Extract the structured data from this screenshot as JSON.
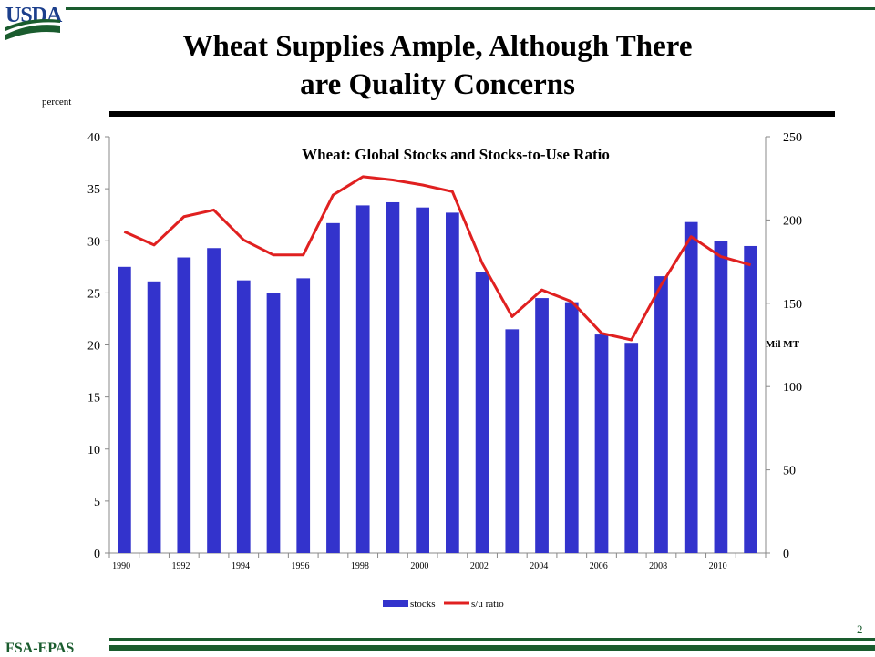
{
  "header": {
    "logo_text": "USDA",
    "title_line1": "Wheat Supplies Ample, Although There",
    "title_line2": "are Quality Concerns"
  },
  "footer": {
    "org": "FSA-EPAS",
    "page_number": "2"
  },
  "colors": {
    "bar": "#3333cc",
    "line": "#e02020",
    "brand_green": "#1a5c2e"
  },
  "chart_data": {
    "type": "bar",
    "title": "Wheat: Global Stocks and Stocks-to-Use Ratio",
    "left_axis_label": "percent",
    "right_axis_label": "Mil MT",
    "x": [
      1990,
      1991,
      1992,
      1993,
      1994,
      1995,
      1996,
      1997,
      1998,
      1999,
      2000,
      2001,
      2002,
      2003,
      2004,
      2005,
      2006,
      2007,
      2008,
      2009,
      2010,
      2011
    ],
    "x_tick_labels": [
      "1990",
      "1992",
      "1994",
      "1996",
      "1998",
      "2000",
      "2002",
      "2004",
      "2006",
      "2008",
      "2010"
    ],
    "left_ylim": [
      0,
      40
    ],
    "left_yticks": [
      "0",
      "5",
      "10",
      "15",
      "20",
      "25",
      "30",
      "35",
      "40"
    ],
    "right_ylim": [
      0,
      250
    ],
    "right_yticks": [
      "0",
      "50",
      "100",
      "150",
      "200",
      "250"
    ],
    "legend_position": "bottom",
    "series": [
      {
        "name": "stocks",
        "type": "bar",
        "axis": "left",
        "values": [
          27.5,
          26.1,
          28.4,
          29.3,
          26.2,
          25.0,
          26.4,
          31.7,
          33.4,
          33.7,
          33.2,
          32.7,
          27.0,
          21.5,
          24.5,
          24.1,
          21.0,
          20.2,
          26.6,
          31.8,
          30.0,
          29.5
        ]
      },
      {
        "name": "s/u ratio",
        "type": "line",
        "axis": "right",
        "values": [
          193,
          185,
          202,
          206,
          188,
          179,
          179,
          215,
          226,
          224,
          221,
          217,
          174,
          142,
          158,
          151,
          132,
          128,
          161,
          190,
          178,
          173
        ]
      }
    ]
  }
}
